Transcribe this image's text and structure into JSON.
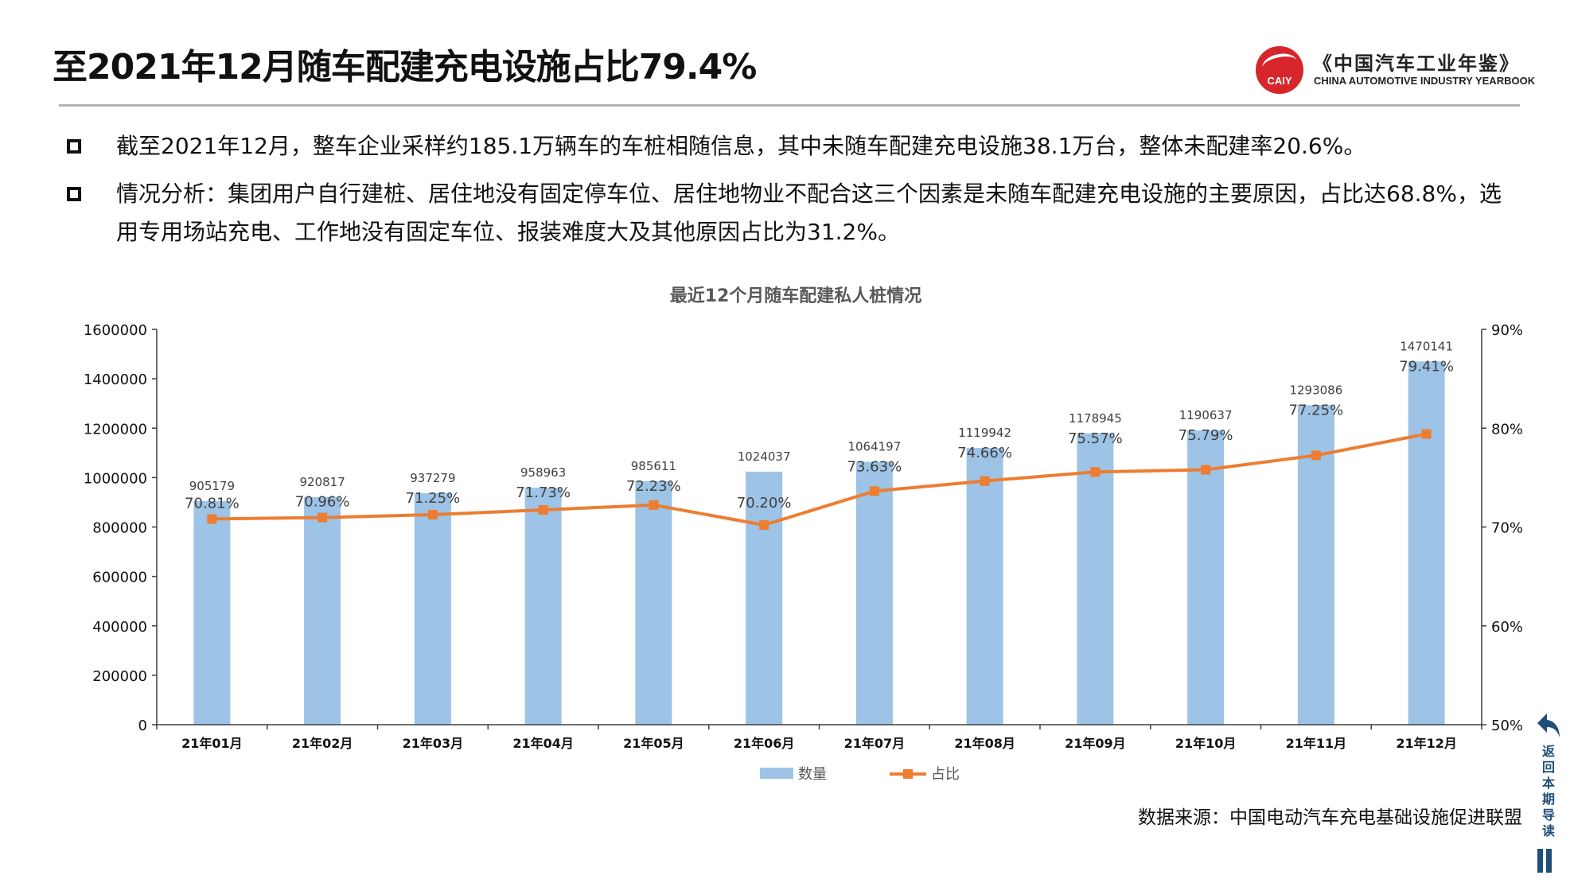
{
  "page": {
    "title": "至2021年12月随车配建充电设施占比79.4%",
    "logo_text_cn": "《中国汽车工业年鉴》",
    "logo_text_en": "CHINA AUTOMOTIVE INDUSTRY YEARBOOK",
    "logo_mark": "CAIY",
    "bullets": [
      "截至2021年12月，整车企业采样约185.1万辆车的车桩相随信息，其中未随车配建充电设施38.1万台，整体未配建率20.6%。",
      "情况分析：集团用户自行建桩、居住地没有固定停车位、居住地物业不配合这三个因素是未随车配建充电设施的主要原因，占比达68.8%，选用专用场站充电、工作地没有固定车位、报装难度大及其他原因占比为31.2%。"
    ],
    "source": "数据来源：中国电动汽车充电基础设施促进联盟",
    "back_nav_label": "返回本期导读"
  },
  "chart_data": {
    "type": "bar+line",
    "title": "最近12个月随车配建私人桩情况",
    "categories": [
      "21年01月",
      "21年02月",
      "21年03月",
      "21年04月",
      "21年05月",
      "21年06月",
      "21年07月",
      "21年08月",
      "21年09月",
      "21年10月",
      "21年11月",
      "21年12月"
    ],
    "series": [
      {
        "name": "数量",
        "type": "bar",
        "axis": "left",
        "color": "#9dc3e6",
        "values": [
          905179,
          920817,
          937279,
          958963,
          985611,
          1024037,
          1064197,
          1119942,
          1178945,
          1190637,
          1293086,
          1470141
        ]
      },
      {
        "name": "占比",
        "type": "line",
        "axis": "right",
        "color": "#ed7d31",
        "values": [
          70.81,
          70.96,
          71.25,
          71.73,
          72.23,
          70.2,
          73.63,
          74.66,
          75.57,
          75.79,
          77.25,
          79.41
        ],
        "labels": [
          "70.81%",
          "70.96%",
          "71.25%",
          "71.73%",
          "72.23%",
          "70.20%",
          "73.63%",
          "74.66%",
          "75.57%",
          "75.79%",
          "77.25%",
          "79.41%"
        ]
      }
    ],
    "left_axis": {
      "ylim": [
        0,
        1600000
      ],
      "ticks": [
        "0",
        "200000",
        "400000",
        "600000",
        "800000",
        "1000000",
        "1200000",
        "1400000",
        "1600000"
      ]
    },
    "right_axis": {
      "ylim": [
        50,
        90
      ],
      "ticks": [
        "50%",
        "60%",
        "70%",
        "80%",
        "90%"
      ]
    },
    "grid": false,
    "legend": "bottom"
  }
}
